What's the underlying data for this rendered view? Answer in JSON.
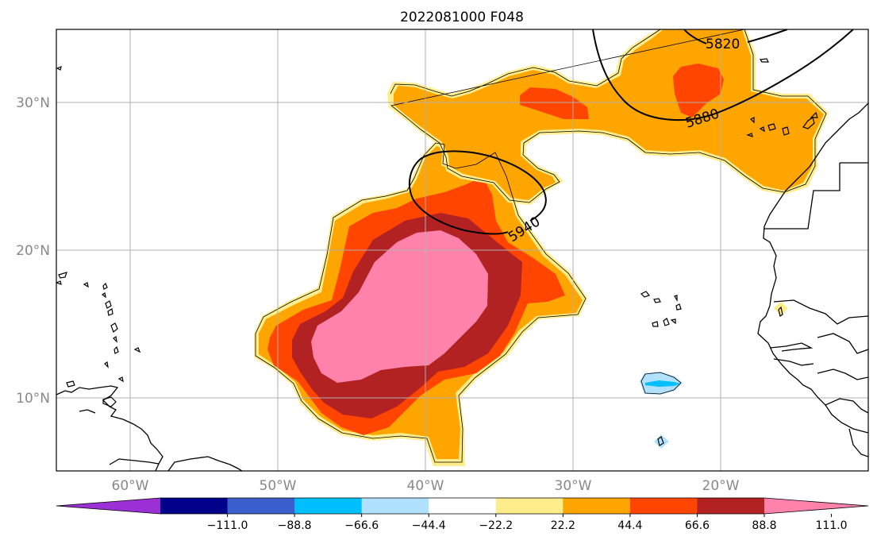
{
  "title": "2022081000 F048",
  "lat_labels": [
    "30°N",
    "20°N",
    "10°N"
  ],
  "lon_labels": [
    "60°W",
    "50°W",
    "40°W",
    "30°W",
    "20°W"
  ],
  "contour_labels": [
    "5820",
    "5880",
    "5940"
  ],
  "colorbar": {
    "ticks": [
      "−111.0",
      "−88.8",
      "−66.6",
      "−44.4",
      "−22.2",
      "22.2",
      "44.4",
      "66.6",
      "88.8",
      "111.0"
    ],
    "colors": [
      "#9b30d5",
      "#00008b",
      "#3a5fcd",
      "#00bfff",
      "#b0e2ff",
      "#ffffff",
      "#ffec8b",
      "#ffa500",
      "#ff4500",
      "#b22222",
      "#ff82ab"
    ]
  },
  "shading_colors": {
    "light_yellow": "#ffec8b",
    "orange": "#ffa500",
    "red_orange": "#ff4500",
    "dark_red": "#b22222",
    "pink": "#ff82ab",
    "light_blue": "#b0e2ff",
    "blue": "#00bfff"
  }
}
